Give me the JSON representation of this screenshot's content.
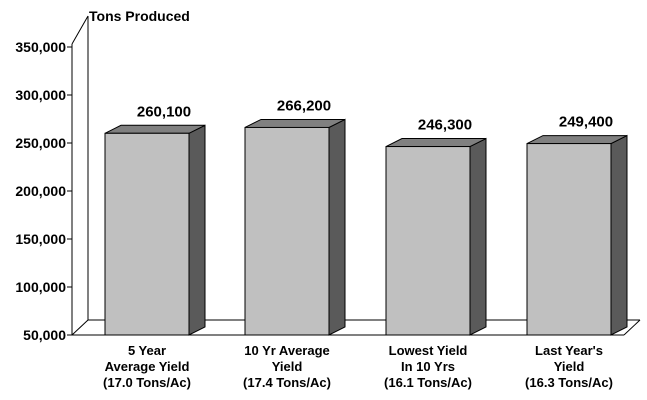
{
  "chart_data": {
    "type": "bar",
    "ylabel": "Tons Produced",
    "ylim": [
      50000,
      350000
    ],
    "yticks": [
      50000,
      100000,
      150000,
      200000,
      250000,
      300000,
      350000
    ],
    "ytick_labels": [
      "50,000",
      "100,000",
      "150,000",
      "200,000",
      "250,000",
      "300,000",
      "350,000"
    ],
    "categories": [
      [
        "5 Year",
        "Average Yield",
        "(17.0 Tons/Ac)"
      ],
      [
        "10 Yr Average",
        "Yield",
        "(17.4 Tons/Ac)"
      ],
      [
        "Lowest Yield",
        "In 10 Yrs",
        "(16.1 Tons/Ac)"
      ],
      [
        "Last Year's",
        "Yield",
        "(16.3 Tons/Ac)"
      ]
    ],
    "values": [
      260100,
      266200,
      246300,
      249400
    ],
    "data_labels": [
      "260,100",
      "266,200",
      "246,300",
      "249,400"
    ],
    "colors": {
      "bar_front": "#c0c0c0",
      "bar_top": "#808080",
      "bar_side": "#5a5a5a",
      "axis": "#000000"
    },
    "grid": false
  }
}
